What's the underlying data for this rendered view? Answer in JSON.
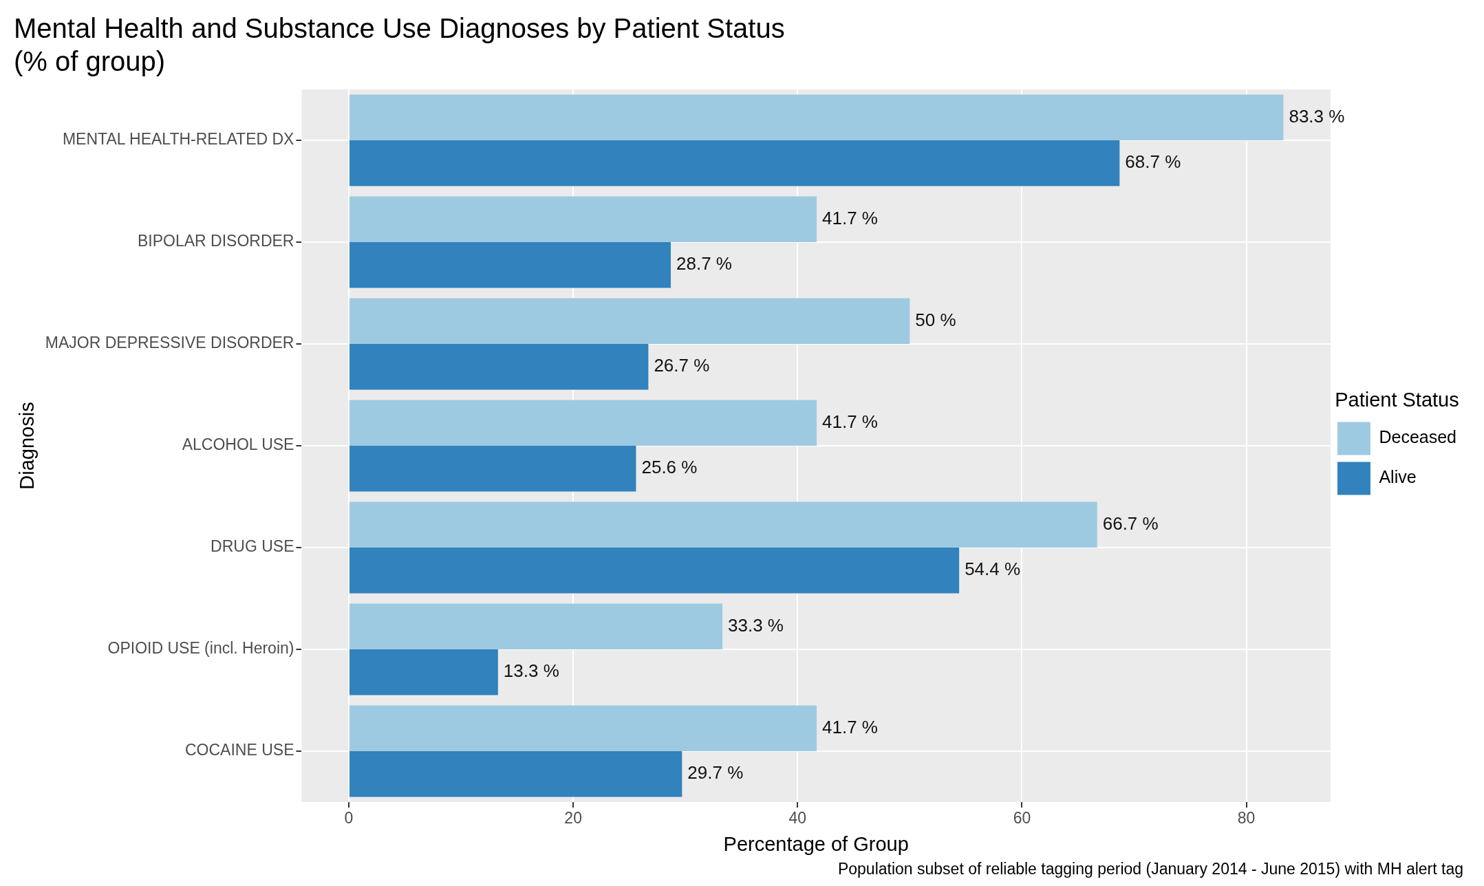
{
  "chart_data": {
    "type": "bar",
    "orientation": "horizontal",
    "title": [
      "Mental Health and Substance Use Diagnoses by Patient Status",
      "(% of group)"
    ],
    "xlabel": "Percentage of Group",
    "ylabel": "Diagnosis",
    "legend_title": "Patient Status",
    "categories": [
      "MENTAL HEALTH-RELATED DX",
      "BIPOLAR DISORDER",
      "MAJOR DEPRESSIVE DISORDER",
      "ALCOHOL USE",
      "DRUG USE",
      "OPIOID USE (incl. Heroin)",
      "COCAINE USE"
    ],
    "series": [
      {
        "name": "Deceased",
        "color": "#9ecae1",
        "values": [
          83.3,
          41.7,
          50,
          41.7,
          66.7,
          33.3,
          41.7
        ],
        "value_labels": [
          "83.3 %",
          "41.7 %",
          "50 %",
          "41.7 %",
          "66.7 %",
          "33.3 %",
          "41.7 %"
        ]
      },
      {
        "name": "Alive",
        "color": "#3182bd",
        "values": [
          68.7,
          28.7,
          26.7,
          25.6,
          54.4,
          13.3,
          29.7
        ],
        "value_labels": [
          "68.7 %",
          "28.7 %",
          "26.7 %",
          "25.6 %",
          "54.4 %",
          "13.3 %",
          "29.7 %"
        ]
      }
    ],
    "xlim": [
      -4.2,
      87.5
    ],
    "xticks": [
      0,
      20,
      40,
      60,
      80
    ],
    "grid": true,
    "legend": "right",
    "annotations": [
      "Population subset of reliable tagging period (January 2014 - June 2015) with MH alert tag"
    ]
  }
}
